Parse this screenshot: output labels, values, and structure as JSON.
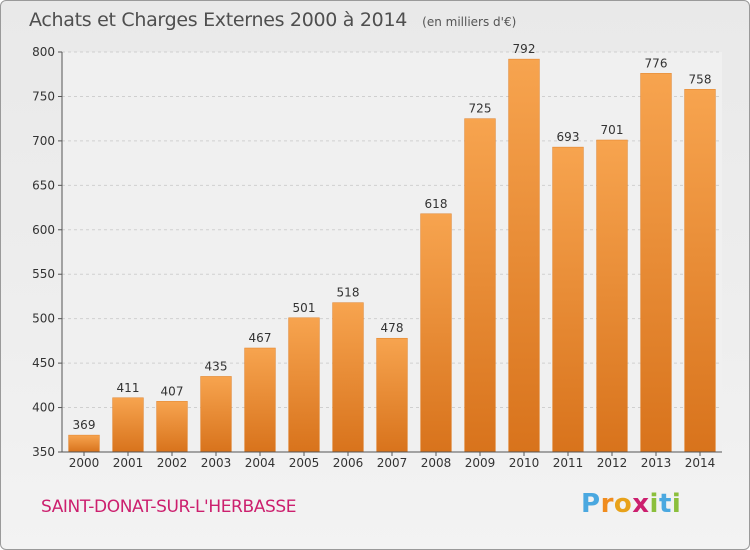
{
  "header": {
    "title": "Achats et Charges Externes 2000 à 2014",
    "unit": "(en milliers d'€)"
  },
  "footer": {
    "commune": "SAINT-DONAT-SUR-L'HERBASSE",
    "logo_text": "Proxiti"
  },
  "colors": {
    "bar_top": "#f7a44f",
    "bar_bottom": "#d8731c",
    "bar_edge": "#e07f25",
    "commune": "#cc1f6e",
    "grid": "#cfcfcf",
    "axis": "#555555"
  },
  "chart_data": {
    "type": "bar",
    "categories": [
      "2000",
      "2001",
      "2002",
      "2003",
      "2004",
      "2005",
      "2006",
      "2007",
      "2008",
      "2009",
      "2010",
      "2011",
      "2012",
      "2013",
      "2014"
    ],
    "values": [
      369,
      411,
      407,
      435,
      467,
      501,
      518,
      478,
      618,
      725,
      792,
      693,
      701,
      776,
      758
    ],
    "ylim": [
      350,
      800
    ],
    "yticks": [
      350,
      400,
      450,
      500,
      550,
      600,
      650,
      700,
      750,
      800
    ],
    "grid": true,
    "data_labels": true,
    "title": "Achats et Charges Externes 2000 à 2014",
    "xlabel": "",
    "ylabel": ""
  }
}
